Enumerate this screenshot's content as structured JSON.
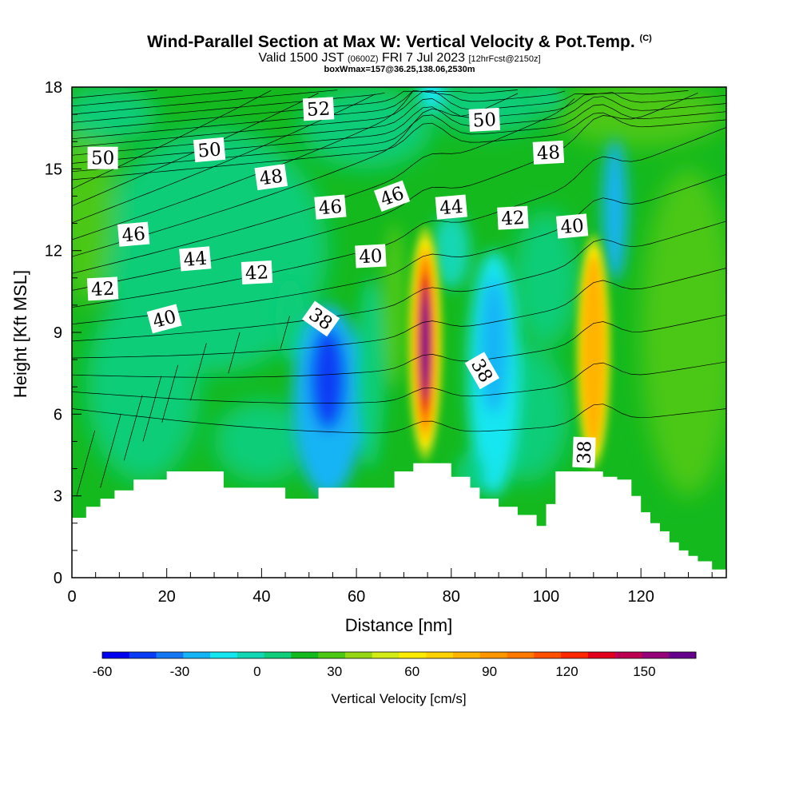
{
  "chart_data": {
    "type": "heatmap",
    "title": "Wind-Parallel Section at Max W: Vertical Velocity & Pot.Temp.",
    "title_suffix": "(C)",
    "subtitle_main": "Valid 1500 JST",
    "subtitle_utc": "(0600Z)",
    "subtitle_date": "FRI 7 Jul 2023",
    "subtitle_fcst": "[12hrFcst@2150z]",
    "subtitle2": "boxWmax=157@36.25,138.06,2530m",
    "xlabel": "Distance [nm]",
    "ylabel": "Height [Kft MSL]",
    "xlim": [
      0,
      138
    ],
    "ylim": [
      0,
      18
    ],
    "xticks": [
      0,
      20,
      40,
      60,
      80,
      100,
      120
    ],
    "yticks": [
      0,
      3,
      6,
      9,
      12,
      15,
      18
    ],
    "colorbar": {
      "title": "Vertical Velocity [cm/s]",
      "min": -60,
      "max": 170,
      "step": 10,
      "tick_values": [
        -60,
        -30,
        0,
        30,
        60,
        90,
        120,
        150
      ],
      "colors": [
        "#0000f0",
        "#0a3cf5",
        "#1478f5",
        "#14b4f5",
        "#14e6f0",
        "#12d7b4",
        "#0fcd78",
        "#14b91e",
        "#4bc814",
        "#96d714",
        "#d2eb14",
        "#ffeb00",
        "#ffd200",
        "#ffb400",
        "#ff9600",
        "#ff7800",
        "#ff5000",
        "#ff2800",
        "#e1001e",
        "#be0050",
        "#960078",
        "#64008c"
      ]
    },
    "updraft_cores": [
      {
        "x": 74.5,
        "y_center": 8.6,
        "max_w": 157
      },
      {
        "x": 110,
        "y_center": 8.3,
        "max_w": 90
      }
    ],
    "downdraft_cores": [
      {
        "x": 54,
        "y_center": 7.3,
        "min_w": -45
      },
      {
        "x": 89,
        "y_center": 7.8,
        "min_w": -15
      },
      {
        "x": 114,
        "y_center": 13.8,
        "min_w": -30
      }
    ],
    "terrain": {
      "x": [
        0,
        3,
        6,
        9,
        13,
        20,
        32,
        45,
        52,
        62,
        68,
        72,
        77,
        80,
        84,
        86,
        90,
        94,
        98,
        100,
        102,
        108,
        112,
        115,
        118,
        120,
        122,
        124,
        126,
        128,
        130,
        132,
        135,
        138
      ],
      "height": [
        2.2,
        2.6,
        2.9,
        3.2,
        3.6,
        3.9,
        3.3,
        2.9,
        3.3,
        3.3,
        3.9,
        4.2,
        4.2,
        3.7,
        3.3,
        2.9,
        2.6,
        2.3,
        1.9,
        2.7,
        3.9,
        3.9,
        3.7,
        3.6,
        3.0,
        2.4,
        2.0,
        1.7,
        1.3,
        1.0,
        0.8,
        0.6,
        0.3,
        0.3
      ]
    },
    "contour_labels": [
      {
        "text": "52",
        "x": 52,
        "y": 17.2,
        "rotate": -3
      },
      {
        "text": "50",
        "x": 87,
        "y": 16.8,
        "rotate": -3
      },
      {
        "text": "50",
        "x": 6.5,
        "y": 15.4,
        "rotate": 0
      },
      {
        "text": "50",
        "x": 29,
        "y": 15.7,
        "rotate": -5
      },
      {
        "text": "48",
        "x": 42,
        "y": 14.7,
        "rotate": -8
      },
      {
        "text": "48",
        "x": 100.5,
        "y": 15.6,
        "rotate": -3
      },
      {
        "text": "46",
        "x": 54.5,
        "y": 13.6,
        "rotate": -5
      },
      {
        "text": "46",
        "x": 67.5,
        "y": 14.0,
        "rotate": -20
      },
      {
        "text": "44",
        "x": 80,
        "y": 13.6,
        "rotate": -5
      },
      {
        "text": "42",
        "x": 93,
        "y": 13.2,
        "rotate": -3
      },
      {
        "text": "40",
        "x": 105.5,
        "y": 12.9,
        "rotate": -5
      },
      {
        "text": "46",
        "x": 13,
        "y": 12.6,
        "rotate": -5
      },
      {
        "text": "44",
        "x": 26,
        "y": 11.7,
        "rotate": -5
      },
      {
        "text": "40",
        "x": 63,
        "y": 11.8,
        "rotate": -3
      },
      {
        "text": "42",
        "x": 39,
        "y": 11.2,
        "rotate": -3
      },
      {
        "text": "42",
        "x": 6.5,
        "y": 10.6,
        "rotate": -3
      },
      {
        "text": "40",
        "x": 19.5,
        "y": 9.5,
        "rotate": -15
      },
      {
        "text": "38",
        "x": 52.5,
        "y": 9.5,
        "rotate": 35
      },
      {
        "text": "38",
        "x": 86.5,
        "y": 7.6,
        "rotate": 60
      },
      {
        "text": "38",
        "x": 108,
        "y": 4.6,
        "rotate": -88
      }
    ]
  }
}
